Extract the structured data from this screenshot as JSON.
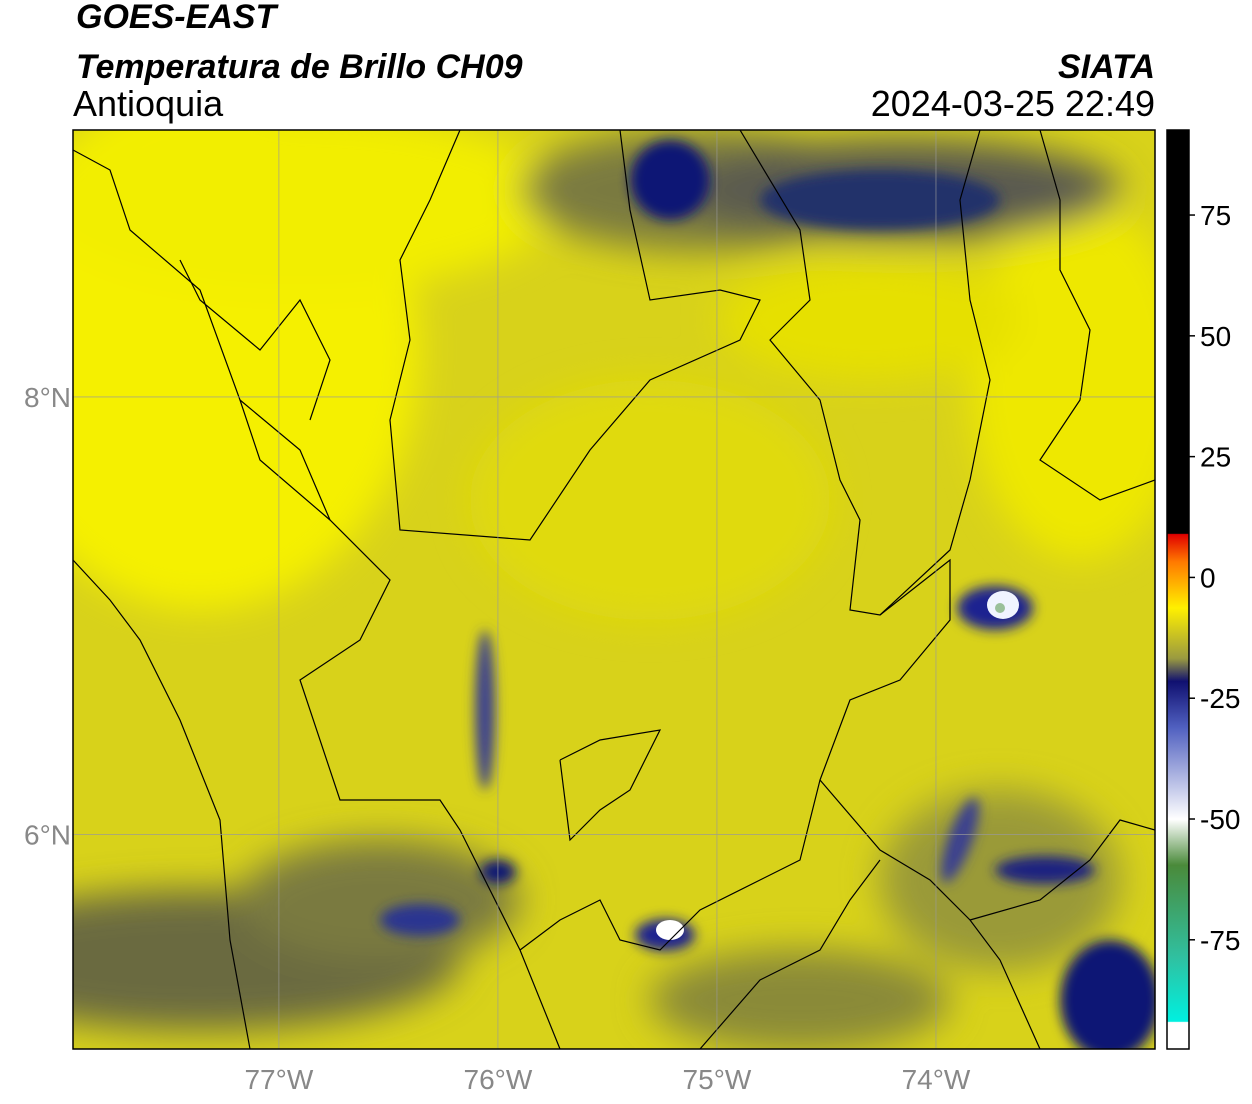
{
  "header": {
    "satellite": "GOES-EAST",
    "title": "Temperatura de Brillo CH09",
    "region": "Antioquia",
    "source": "SIATA",
    "datetime": "2024-03-25 22:49"
  },
  "map": {
    "lonlim": [
      -77.94,
      -73.0
    ],
    "latlim": [
      5.02,
      9.22
    ],
    "lon_ticks": [
      {
        "value": -77,
        "label": "77°W"
      },
      {
        "value": -76,
        "label": "76°W"
      },
      {
        "value": -75,
        "label": "75°W"
      },
      {
        "value": -74,
        "label": "74°W"
      }
    ],
    "lat_ticks": [
      {
        "value": 8,
        "label": "8°N"
      },
      {
        "value": 6,
        "label": "6°N"
      }
    ]
  },
  "colorbar": {
    "lim": [
      -97.6,
      92.6
    ],
    "ticks": [
      75,
      50,
      25,
      0,
      -25,
      -50,
      -75
    ]
  }
}
